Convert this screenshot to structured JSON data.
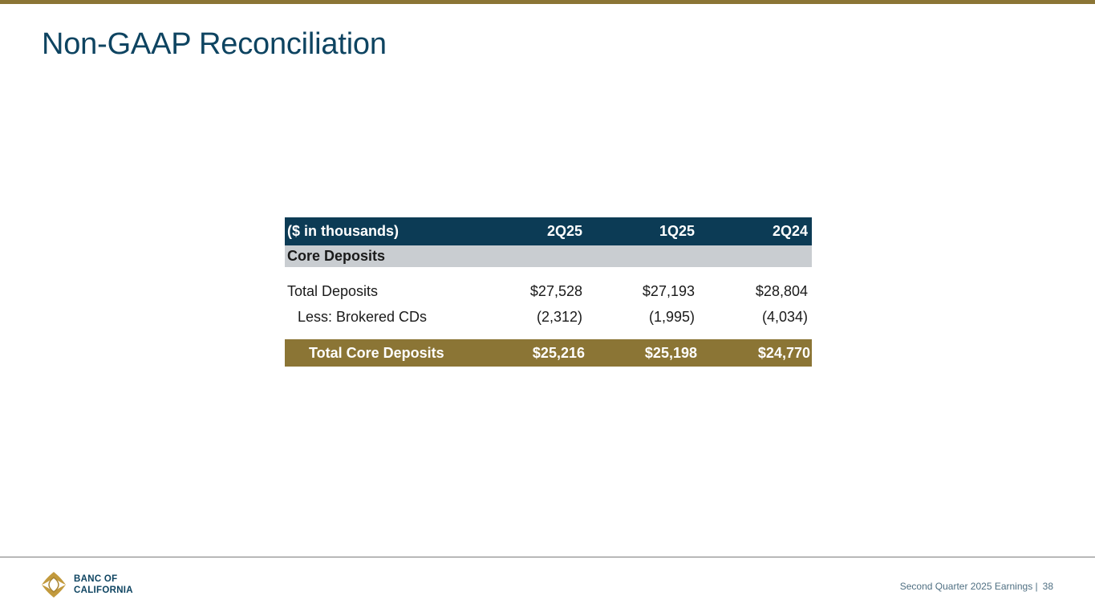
{
  "slide": {
    "title": "Non-GAAP Reconciliation"
  },
  "table": {
    "header": {
      "label": "($ in thousands)",
      "periods": [
        "2Q25",
        "1Q25",
        "2Q24"
      ]
    },
    "section": "Core Deposits",
    "rows": [
      {
        "label": "Total Deposits",
        "values": [
          "$27,528",
          "$27,193",
          "$28,804"
        ]
      },
      {
        "label": "Less: Brokered CDs",
        "values": [
          "(2,312)",
          "(1,995)",
          "(4,034)"
        ]
      }
    ],
    "total": {
      "label": "Total Core Deposits",
      "values": [
        "$25,216",
        "$25,198",
        "$24,770"
      ]
    }
  },
  "footer": {
    "logo_line1": "BANC OF",
    "logo_line2": "CALIFORNIA",
    "caption": "Second Quarter 2025 Earnings |",
    "page_number": "38"
  },
  "colors": {
    "brand_gold": "#8b7535",
    "brand_navy": "#0c3b55",
    "title_blue": "#0e4461",
    "section_gray": "#c9cdd1"
  }
}
